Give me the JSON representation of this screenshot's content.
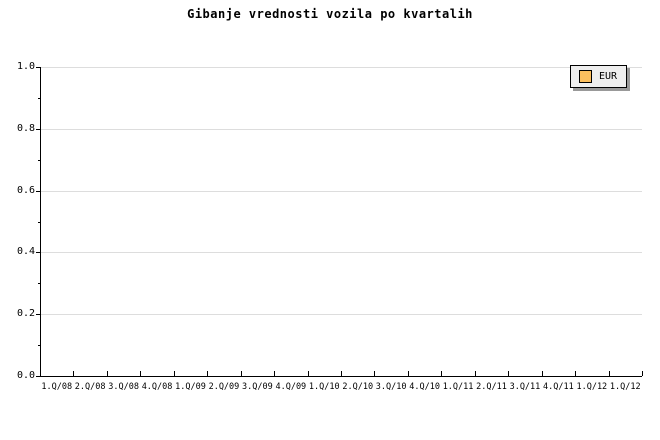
{
  "chart_data": {
    "type": "bar",
    "title": "Gibanje vrednosti vozila po kvartalih",
    "x_categories": [
      "1.Q/08",
      "2.Q/08",
      "3.Q/08",
      "4.Q/08",
      "1.Q/09",
      "2.Q/09",
      "3.Q/09",
      "4.Q/09",
      "1.Q/10",
      "2.Q/10",
      "3.Q/10",
      "4.Q/10",
      "1.Q/11",
      "2.Q/11",
      "3.Q/11",
      "4.Q/11",
      "1.Q/12",
      "1.Q/12"
    ],
    "series": [
      {
        "name": "EUR",
        "color": "#FBBF5E",
        "values": []
      }
    ],
    "ylim": [
      0.0,
      1.0
    ],
    "y_major_ticks": [
      {
        "value": 0.0,
        "label": "0.0"
      },
      {
        "value": 0.2,
        "label": "0.2"
      },
      {
        "value": 0.4,
        "label": "0.4"
      },
      {
        "value": 0.6,
        "label": "0.6"
      },
      {
        "value": 0.8,
        "label": "0.8"
      },
      {
        "value": 1.0,
        "label": "1.0"
      }
    ],
    "y_minor_step": 0.1,
    "grid": "horizontal-major-only",
    "legend": {
      "position": "top-right",
      "entries": [
        {
          "label": "EUR",
          "swatch_color": "#FBBF5E"
        }
      ]
    },
    "colors": {
      "background": "#FFFFFF",
      "axis": "#000000",
      "gridline": "#DDDDDD",
      "legend_background": "#EEEEEE",
      "legend_shadow": "#999999",
      "text": "#000000"
    }
  }
}
